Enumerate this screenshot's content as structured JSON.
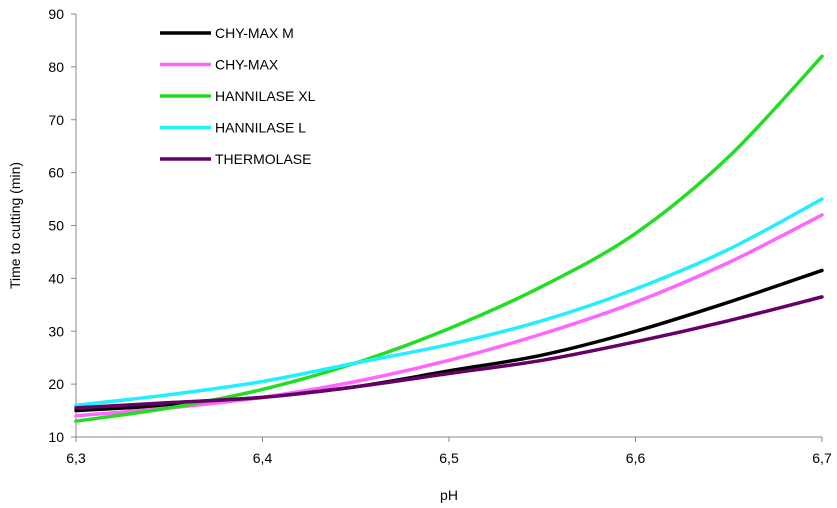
{
  "chart_data": {
    "type": "line",
    "xlabel": "pH",
    "ylabel": "Time to cutting (min)",
    "xlim": [
      6.3,
      6.7
    ],
    "ylim": [
      10,
      90
    ],
    "x_ticks": [
      6.3,
      6.4,
      6.5,
      6.6,
      6.7
    ],
    "x_tick_labels": [
      "6,3",
      "6,4",
      "6,5",
      "6,6",
      "6,7"
    ],
    "y_ticks": [
      10,
      20,
      30,
      40,
      50,
      60,
      70,
      80,
      90
    ],
    "y_tick_labels": [
      "10",
      "20",
      "30",
      "40",
      "50",
      "60",
      "70",
      "80",
      "90"
    ],
    "grid": false,
    "legend_position": "top-left",
    "x": [
      6.3,
      6.35,
      6.4,
      6.45,
      6.5,
      6.55,
      6.6,
      6.65,
      6.7
    ],
    "series": [
      {
        "name": "CHY-MAX M",
        "color": "#000000",
        "values": [
          15.0,
          16.0,
          17.5,
          19.5,
          22.5,
          25.5,
          30.0,
          35.5,
          41.5
        ]
      },
      {
        "name": "CHY-MAX",
        "color": "#ff66ff",
        "values": [
          14.0,
          15.5,
          17.5,
          20.5,
          24.5,
          29.5,
          35.5,
          43.0,
          52.0
        ]
      },
      {
        "name": "HANNILASE XL",
        "color": "#22dd22",
        "values": [
          13.0,
          15.5,
          19.0,
          24.0,
          30.5,
          38.5,
          48.5,
          63.0,
          82.0
        ]
      },
      {
        "name": "HANNILASE L",
        "color": "#22eeff",
        "values": [
          16.0,
          18.0,
          20.5,
          24.0,
          27.5,
          32.0,
          38.0,
          45.5,
          55.0
        ]
      },
      {
        "name": "THERMOLASE",
        "color": "#660066",
        "values": [
          15.5,
          16.5,
          17.5,
          19.5,
          22.0,
          24.5,
          28.0,
          32.0,
          36.5
        ]
      }
    ]
  }
}
